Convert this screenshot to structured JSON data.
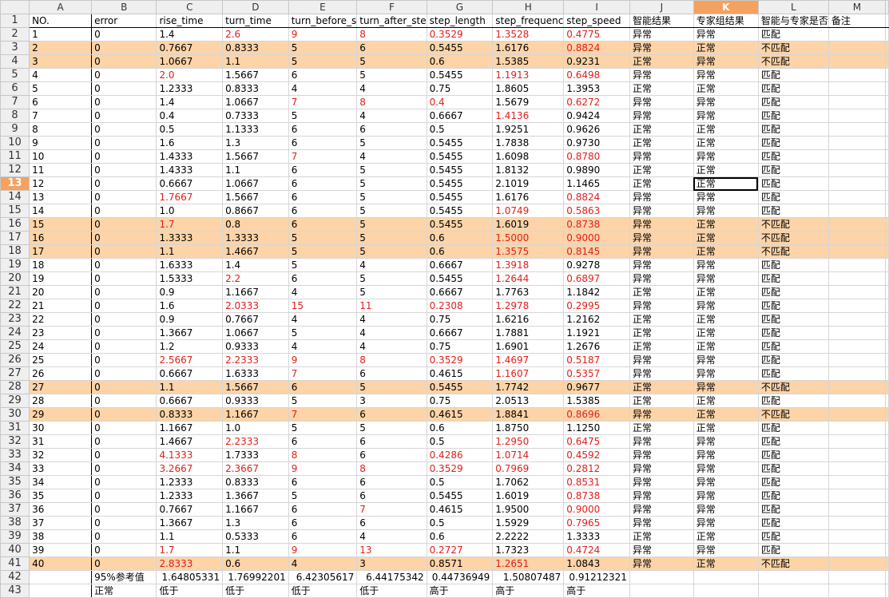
{
  "columns": [
    "A",
    "B",
    "C",
    "D",
    "E",
    "F",
    "G",
    "H",
    "I",
    "J",
    "K",
    "L",
    "M"
  ],
  "active_column": "K",
  "active_row": 13,
  "selected_cell": "K13",
  "header_row": [
    "NO.",
    "error",
    "rise_time",
    "turn_time",
    "turn_before_s",
    "turn_after_ste",
    "step_length",
    "step_frequenc",
    "step_speed",
    "智能结果",
    "专家组结果",
    "智能与专家是否",
    "备注"
  ],
  "highlight_rows": [
    3,
    4,
    16,
    17,
    18,
    28,
    30,
    41
  ],
  "data_rows": [
    {
      "r": 2,
      "v": [
        "1",
        "0",
        "1.4",
        "2.6",
        "9",
        "8",
        "0.3529",
        "1.3528",
        "0.4775",
        "异常",
        "异常",
        "匹配",
        ""
      ],
      "red": [
        "D",
        "E",
        "F",
        "G",
        "H",
        "I"
      ]
    },
    {
      "r": 3,
      "v": [
        "2",
        "0",
        "0.7667",
        "0.8333",
        "5",
        "6",
        "0.5455",
        "1.6176",
        "0.8824",
        "异常",
        "正常",
        "不匹配",
        ""
      ],
      "red": [
        "I"
      ]
    },
    {
      "r": 4,
      "v": [
        "3",
        "0",
        "1.0667",
        "1.1",
        "5",
        "5",
        "0.6",
        "1.5385",
        "0.9231",
        "正常",
        "异常",
        "不匹配",
        ""
      ],
      "red": []
    },
    {
      "r": 5,
      "v": [
        "4",
        "0",
        "2.0",
        "1.5667",
        "6",
        "5",
        "0.5455",
        "1.1913",
        "0.6498",
        "异常",
        "异常",
        "匹配",
        ""
      ],
      "red": [
        "C",
        "H",
        "I"
      ]
    },
    {
      "r": 6,
      "v": [
        "5",
        "0",
        "1.2333",
        "0.8333",
        "4",
        "4",
        "0.75",
        "1.8605",
        "1.3953",
        "正常",
        "正常",
        "匹配",
        ""
      ],
      "red": []
    },
    {
      "r": 7,
      "v": [
        "6",
        "0",
        "1.4",
        "1.0667",
        "7",
        "8",
        "0.4",
        "1.5679",
        "0.6272",
        "异常",
        "异常",
        "匹配",
        ""
      ],
      "red": [
        "E",
        "F",
        "G",
        "I"
      ]
    },
    {
      "r": 8,
      "v": [
        "7",
        "0",
        "0.4",
        "0.7333",
        "5",
        "4",
        "0.6667",
        "1.4136",
        "0.9424",
        "异常",
        "异常",
        "匹配",
        ""
      ],
      "red": [
        "H"
      ]
    },
    {
      "r": 9,
      "v": [
        "8",
        "0",
        "0.5",
        "1.1333",
        "6",
        "6",
        "0.5",
        "1.9251",
        "0.9626",
        "正常",
        "正常",
        "匹配",
        ""
      ],
      "red": []
    },
    {
      "r": 10,
      "v": [
        "9",
        "0",
        "1.6",
        "1.3",
        "6",
        "5",
        "0.5455",
        "1.7838",
        "0.9730",
        "正常",
        "正常",
        "匹配",
        ""
      ],
      "red": []
    },
    {
      "r": 11,
      "v": [
        "10",
        "0",
        "1.4333",
        "1.5667",
        "7",
        "4",
        "0.5455",
        "1.6098",
        "0.8780",
        "异常",
        "异常",
        "匹配",
        ""
      ],
      "red": [
        "E",
        "I"
      ]
    },
    {
      "r": 12,
      "v": [
        "11",
        "0",
        "1.4333",
        "1.1",
        "6",
        "5",
        "0.5455",
        "1.8132",
        "0.9890",
        "正常",
        "正常",
        "匹配",
        ""
      ],
      "red": []
    },
    {
      "r": 13,
      "v": [
        "12",
        "0",
        "0.6667",
        "1.0667",
        "6",
        "5",
        "0.5455",
        "2.1019",
        "1.1465",
        "正常",
        "正常",
        "匹配",
        ""
      ],
      "red": []
    },
    {
      "r": 14,
      "v": [
        "13",
        "0",
        "1.7667",
        "1.5667",
        "6",
        "5",
        "0.5455",
        "1.6176",
        "0.8824",
        "异常",
        "异常",
        "匹配",
        ""
      ],
      "red": [
        "C",
        "I"
      ]
    },
    {
      "r": 15,
      "v": [
        "14",
        "0",
        "1.0",
        "0.8667",
        "6",
        "5",
        "0.5455",
        "1.0749",
        "0.5863",
        "异常",
        "异常",
        "匹配",
        ""
      ],
      "red": [
        "H",
        "I"
      ]
    },
    {
      "r": 16,
      "v": [
        "15",
        "0",
        "1.7",
        "0.8",
        "6",
        "5",
        "0.5455",
        "1.6019",
        "0.8738",
        "异常",
        "正常",
        "不匹配",
        ""
      ],
      "red": [
        "C",
        "I"
      ]
    },
    {
      "r": 17,
      "v": [
        "16",
        "0",
        "1.3333",
        "1.3333",
        "5",
        "5",
        "0.6",
        "1.5000",
        "0.9000",
        "异常",
        "正常",
        "不匹配",
        ""
      ],
      "red": [
        "H",
        "I"
      ]
    },
    {
      "r": 18,
      "v": [
        "17",
        "0",
        "1.1",
        "1.4667",
        "5",
        "5",
        "0.6",
        "1.3575",
        "0.8145",
        "异常",
        "正常",
        "不匹配",
        ""
      ],
      "red": [
        "H",
        "I"
      ]
    },
    {
      "r": 19,
      "v": [
        "18",
        "0",
        "1.6333",
        "1.4",
        "5",
        "4",
        "0.6667",
        "1.3918",
        "0.9278",
        "异常",
        "异常",
        "匹配",
        ""
      ],
      "red": [
        "H"
      ]
    },
    {
      "r": 20,
      "v": [
        "19",
        "0",
        "1.5333",
        "2.2",
        "6",
        "5",
        "0.5455",
        "1.2644",
        "0.6897",
        "异常",
        "异常",
        "匹配",
        ""
      ],
      "red": [
        "D",
        "H",
        "I"
      ]
    },
    {
      "r": 21,
      "v": [
        "20",
        "0",
        "0.9",
        "1.1667",
        "4",
        "5",
        "0.6667",
        "1.7763",
        "1.1842",
        "正常",
        "正常",
        "匹配",
        ""
      ],
      "red": []
    },
    {
      "r": 22,
      "v": [
        "21",
        "0",
        "1.6",
        "2.0333",
        "15",
        "11",
        "0.2308",
        "1.2978",
        "0.2995",
        "异常",
        "异常",
        "匹配",
        ""
      ],
      "red": [
        "D",
        "E",
        "F",
        "G",
        "H",
        "I"
      ]
    },
    {
      "r": 23,
      "v": [
        "22",
        "0",
        "0.9",
        "0.7667",
        "4",
        "4",
        "0.75",
        "1.6216",
        "1.2162",
        "正常",
        "正常",
        "匹配",
        ""
      ],
      "red": []
    },
    {
      "r": 24,
      "v": [
        "23",
        "0",
        "1.3667",
        "1.0667",
        "5",
        "4",
        "0.6667",
        "1.7881",
        "1.1921",
        "正常",
        "正常",
        "匹配",
        ""
      ],
      "red": []
    },
    {
      "r": 25,
      "v": [
        "24",
        "0",
        "1.2",
        "0.9333",
        "4",
        "4",
        "0.75",
        "1.6901",
        "1.2676",
        "正常",
        "正常",
        "匹配",
        ""
      ],
      "red": []
    },
    {
      "r": 26,
      "v": [
        "25",
        "0",
        "2.5667",
        "2.2333",
        "9",
        "8",
        "0.3529",
        "1.4697",
        "0.5187",
        "异常",
        "异常",
        "匹配",
        ""
      ],
      "red": [
        "C",
        "D",
        "E",
        "F",
        "G",
        "H",
        "I"
      ]
    },
    {
      "r": 27,
      "v": [
        "26",
        "0",
        "0.6667",
        "1.6333",
        "7",
        "6",
        "0.4615",
        "1.1607",
        "0.5357",
        "异常",
        "异常",
        "匹配",
        ""
      ],
      "red": [
        "E",
        "H",
        "I"
      ]
    },
    {
      "r": 28,
      "v": [
        "27",
        "0",
        "1.1",
        "1.5667",
        "6",
        "5",
        "0.5455",
        "1.7742",
        "0.9677",
        "正常",
        "异常",
        "不匹配",
        ""
      ],
      "red": []
    },
    {
      "r": 29,
      "v": [
        "28",
        "0",
        "0.6667",
        "0.9333",
        "5",
        "3",
        "0.75",
        "2.0513",
        "1.5385",
        "正常",
        "正常",
        "匹配",
        ""
      ],
      "red": []
    },
    {
      "r": 30,
      "v": [
        "29",
        "0",
        "0.8333",
        "1.1667",
        "7",
        "6",
        "0.4615",
        "1.8841",
        "0.8696",
        "异常",
        "正常",
        "不匹配",
        ""
      ],
      "red": [
        "E",
        "I"
      ]
    },
    {
      "r": 31,
      "v": [
        "30",
        "0",
        "1.1667",
        "1.0",
        "5",
        "5",
        "0.6",
        "1.8750",
        "1.1250",
        "正常",
        "正常",
        "匹配",
        ""
      ],
      "red": []
    },
    {
      "r": 32,
      "v": [
        "31",
        "0",
        "1.4667",
        "2.2333",
        "6",
        "6",
        "0.5",
        "1.2950",
        "0.6475",
        "异常",
        "异常",
        "匹配",
        ""
      ],
      "red": [
        "D",
        "H",
        "I"
      ]
    },
    {
      "r": 33,
      "v": [
        "32",
        "0",
        "4.1333",
        "1.7333",
        "8",
        "6",
        "0.4286",
        "1.0714",
        "0.4592",
        "异常",
        "异常",
        "匹配",
        ""
      ],
      "red": [
        "C",
        "E",
        "G",
        "H",
        "I"
      ]
    },
    {
      "r": 34,
      "v": [
        "33",
        "0",
        "3.2667",
        "2.3667",
        "9",
        "8",
        "0.3529",
        "0.7969",
        "0.2812",
        "异常",
        "异常",
        "匹配",
        ""
      ],
      "red": [
        "C",
        "D",
        "E",
        "F",
        "G",
        "H",
        "I"
      ]
    },
    {
      "r": 35,
      "v": [
        "34",
        "0",
        "1.2333",
        "0.8333",
        "6",
        "6",
        "0.5",
        "1.7062",
        "0.8531",
        "异常",
        "异常",
        "匹配",
        ""
      ],
      "red": [
        "I"
      ]
    },
    {
      "r": 36,
      "v": [
        "35",
        "0",
        "1.2333",
        "1.3667",
        "5",
        "6",
        "0.5455",
        "1.6019",
        "0.8738",
        "异常",
        "异常",
        "匹配",
        ""
      ],
      "red": [
        "I"
      ]
    },
    {
      "r": 37,
      "v": [
        "36",
        "0",
        "0.7667",
        "1.1667",
        "6",
        "7",
        "0.4615",
        "1.9500",
        "0.9000",
        "异常",
        "异常",
        "匹配",
        ""
      ],
      "red": [
        "F",
        "I"
      ]
    },
    {
      "r": 38,
      "v": [
        "37",
        "0",
        "1.3667",
        "1.3",
        "6",
        "6",
        "0.5",
        "1.5929",
        "0.7965",
        "异常",
        "异常",
        "匹配",
        ""
      ],
      "red": [
        "I"
      ]
    },
    {
      "r": 39,
      "v": [
        "38",
        "0",
        "1.1",
        "0.5333",
        "6",
        "4",
        "0.6",
        "2.2222",
        "1.3333",
        "正常",
        "正常",
        "匹配",
        ""
      ],
      "red": []
    },
    {
      "r": 40,
      "v": [
        "39",
        "0",
        "1.7",
        "1.1",
        "9",
        "13",
        "0.2727",
        "1.7323",
        "0.4724",
        "异常",
        "异常",
        "匹配",
        ""
      ],
      "red": [
        "C",
        "E",
        "F",
        "G",
        "I"
      ]
    },
    {
      "r": 41,
      "v": [
        "40",
        "0",
        "2.8333",
        "0.6",
        "4",
        "3",
        "0.8571",
        "1.2651",
        "1.0843",
        "异常",
        "正常",
        "不匹配",
        ""
      ],
      "red": [
        "C",
        "H"
      ]
    }
  ],
  "row42": [
    "",
    "95%参考值",
    "1.64805331",
    "1.76992201",
    "6.42305617",
    "6.44175342",
    "0.44736949",
    "1.50807487",
    "0.91212321",
    "",
    "",
    "",
    ""
  ],
  "row43": [
    "",
    "正常",
    "低于",
    "低于",
    "低于",
    "低于",
    "高于",
    "高于",
    "高于",
    "",
    "",
    "",
    ""
  ]
}
